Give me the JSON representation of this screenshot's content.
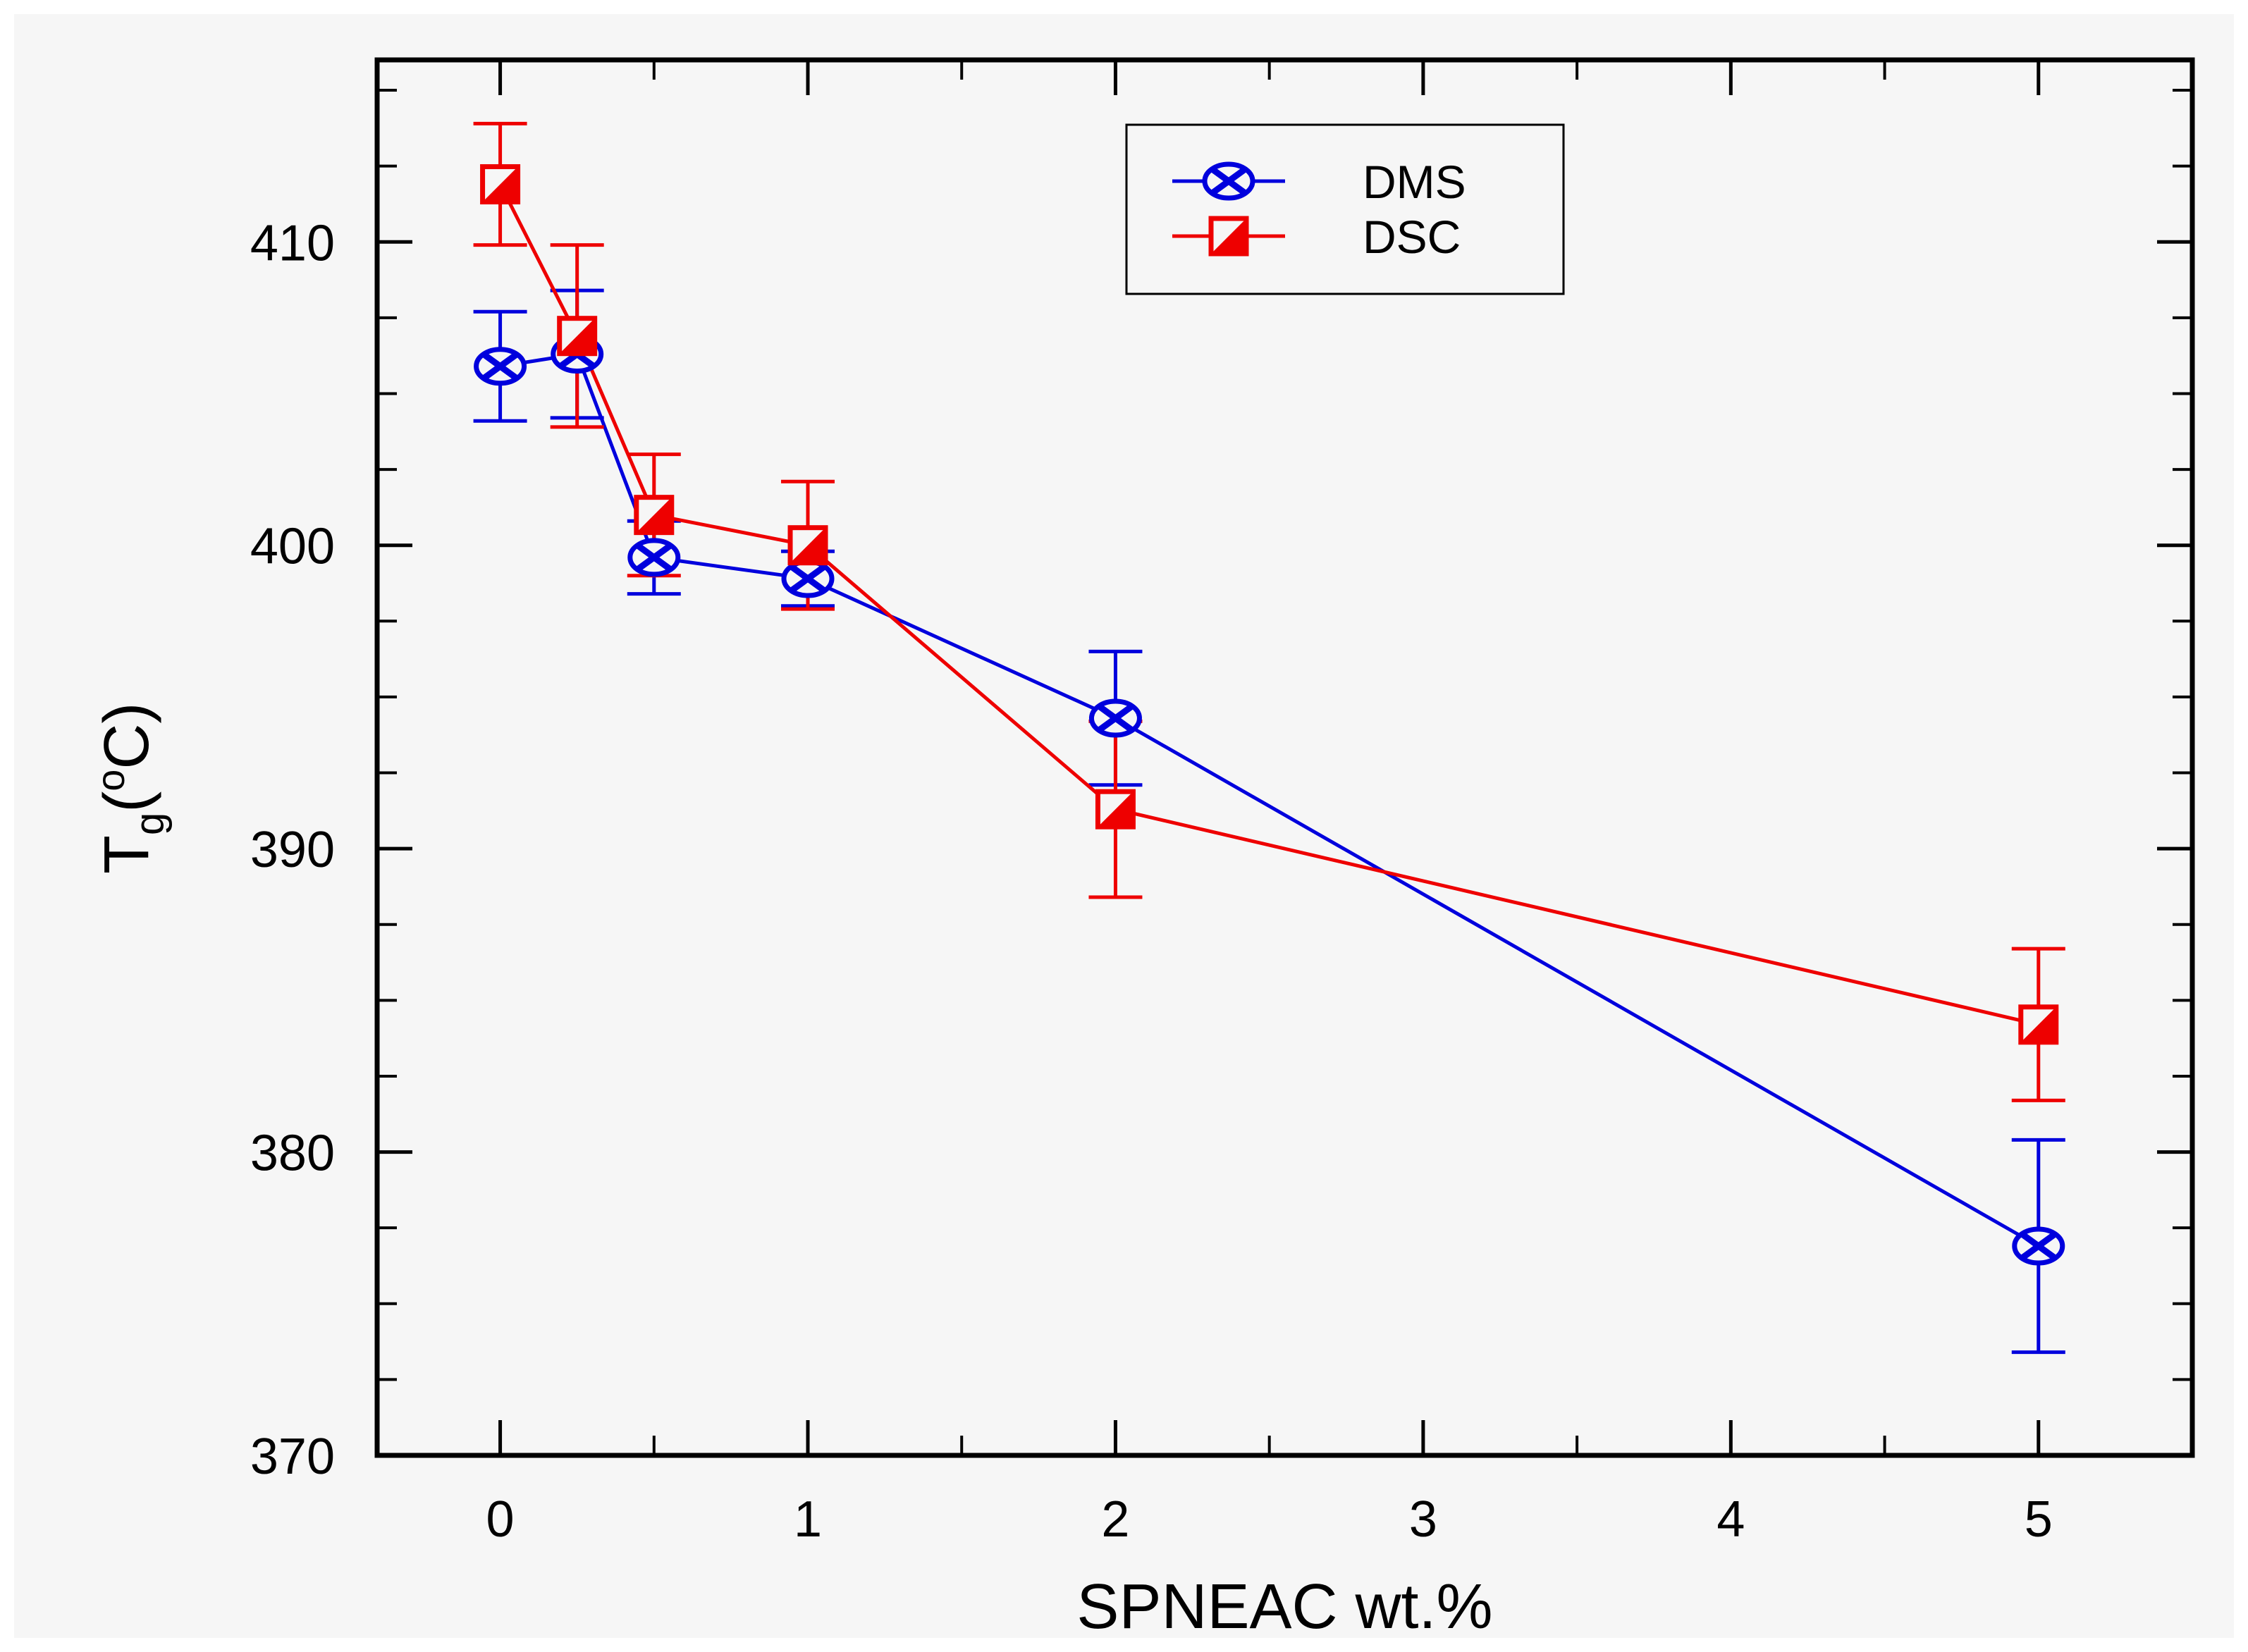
{
  "chart_data": {
    "type": "line",
    "xlabel": "SPNEAC wt.%",
    "ylabel": {
      "main": "T",
      "sub": "g",
      "unit_open": "(",
      "unit_sup": "o",
      "unit_close": "C)"
    },
    "xlim": [
      -0.4,
      5.5
    ],
    "ylim": [
      370,
      416
    ],
    "x_ticks": [
      0,
      1,
      2,
      3,
      4,
      5
    ],
    "x_tick_labels": [
      "0",
      "1",
      "2",
      "3",
      "4",
      "5"
    ],
    "y_ticks": [
      370,
      380,
      390,
      400,
      410
    ],
    "y_tick_labels": [
      "370",
      "380",
      "390",
      "400",
      "410"
    ],
    "legend_position": "top-center",
    "series": [
      {
        "name": "DMS",
        "color": "#0000dd",
        "marker": "circle-x",
        "x": [
          0,
          0.25,
          0.5,
          1,
          2,
          5
        ],
        "y": [
          405.9,
          406.3,
          399.6,
          398.9,
          394.3,
          376.9
        ],
        "err": [
          1.8,
          2.1,
          1.2,
          0.9,
          2.2,
          3.5
        ]
      },
      {
        "name": "DSC",
        "color": "#ee0000",
        "marker": "square",
        "x": [
          0,
          0.25,
          0.5,
          1,
          2,
          5
        ],
        "y": [
          411.9,
          406.9,
          401.0,
          400.0,
          391.3,
          384.2
        ],
        "err": [
          2.0,
          3.0,
          2.0,
          2.1,
          2.9,
          2.5
        ]
      }
    ]
  }
}
